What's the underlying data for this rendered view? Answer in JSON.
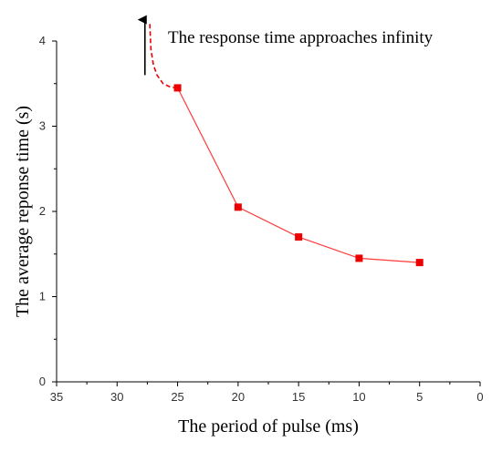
{
  "chart_data": {
    "type": "line",
    "xlabel": "The period of pulse (ms)",
    "ylabel": "The average reponse time (s)",
    "xlim": [
      35,
      0
    ],
    "ylim": [
      0,
      4
    ],
    "x_reversed": true,
    "xticks": [
      35,
      30,
      25,
      20,
      15,
      10,
      5,
      0
    ],
    "yticks": [
      0,
      1,
      2,
      3,
      4
    ],
    "grid": false,
    "series": [
      {
        "x": [
          25,
          20,
          15,
          10,
          5
        ],
        "y": [
          3.45,
          2.05,
          1.7,
          1.45,
          1.4
        ],
        "color": "#ff3b3b",
        "marker": "square",
        "marker_color": "#ee0000"
      }
    ],
    "asymptote_curve": {
      "x": [
        27.3,
        27.2,
        27.0,
        26.7,
        26.2,
        25.6,
        25.0
      ],
      "y": [
        4.2,
        3.9,
        3.72,
        3.6,
        3.5,
        3.46,
        3.45
      ],
      "style": "dashed",
      "color": "#ee0000"
    },
    "annotation": {
      "text": "The response time approaches infinity",
      "arrow_x": 27.7,
      "arrow_y_from": 3.6,
      "arrow_y_to": 4.25
    }
  }
}
